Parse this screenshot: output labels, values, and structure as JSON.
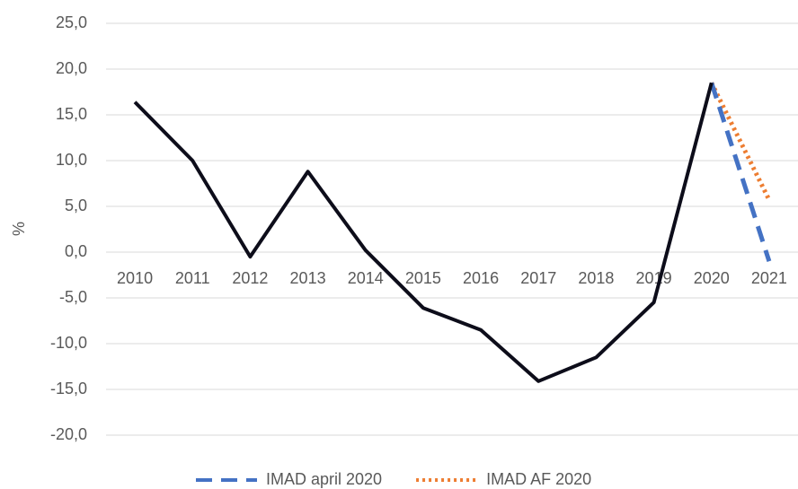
{
  "chart_data": {
    "type": "line",
    "y_label": "%",
    "categories": [
      "2010",
      "2011",
      "2012",
      "2013",
      "2014",
      "2015",
      "2016",
      "2017",
      "2018",
      "2019",
      "2020",
      "2021"
    ],
    "series": [
      {
        "color": "#0d0d1a",
        "style": "solid",
        "values": [
          16.4,
          10.0,
          -0.5,
          8.8,
          0.2,
          -6.1,
          -8.5,
          -14.1,
          -11.5,
          -5.5,
          18.5,
          null
        ]
      },
      {
        "name": "IMAD april 2020",
        "color": "#4472c4",
        "style": "dashed",
        "values": [
          null,
          null,
          null,
          null,
          null,
          null,
          null,
          null,
          null,
          null,
          18.5,
          -1.0
        ]
      },
      {
        "name": "IMAD AF 2020",
        "color": "#ed7d31",
        "style": "dotted",
        "values": [
          null,
          null,
          null,
          null,
          null,
          null,
          null,
          null,
          null,
          null,
          18.5,
          5.7
        ]
      }
    ],
    "ylim": [
      -20,
      25
    ],
    "yticks": [
      {
        "value": -20,
        "label": "-20,0"
      },
      {
        "value": -15,
        "label": "-15,0"
      },
      {
        "value": -10,
        "label": "-10,0"
      },
      {
        "value": -5,
        "label": "-5,0"
      },
      {
        "value": 0,
        "label": "0,0"
      },
      {
        "value": 5,
        "label": "5,0"
      },
      {
        "value": 10,
        "label": "10,0"
      },
      {
        "value": 15,
        "label": "15,0"
      },
      {
        "value": 20,
        "label": "20,0"
      },
      {
        "value": 25,
        "label": "25,0"
      }
    ],
    "grid": true
  }
}
